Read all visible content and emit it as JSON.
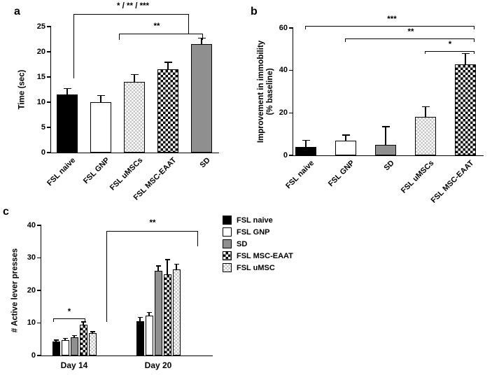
{
  "figure": {
    "background": "#ffffff",
    "colors": {
      "black_bar": "#000000",
      "white_bar": "#ffffff",
      "gray_bar": "#8f8f8f",
      "checker_dark": "#000000",
      "checker_light": "#c4c4c4"
    }
  },
  "panels": {
    "a": {
      "label": "a"
    },
    "b": {
      "label": "b"
    },
    "c": {
      "label": "c"
    }
  },
  "chart_data": [
    {
      "type": "bar",
      "panel": "a",
      "title": "",
      "ylabel": "Time (sec)",
      "ylim": [
        0,
        25
      ],
      "yticks": [
        0,
        5,
        10,
        15,
        20,
        25
      ],
      "categories": [
        "FSL naive",
        "FSL GNP",
        "FSL uMSCs",
        "FSL MSC-EAAT",
        "SD"
      ],
      "values": [
        11.5,
        10.0,
        14.0,
        16.5,
        21.5
      ],
      "errors": [
        1.2,
        1.3,
        1.5,
        1.4,
        1.2
      ],
      "styles": [
        "black",
        "white",
        "light-check",
        "check",
        "gray"
      ],
      "annotations": [
        "* / ** / ***",
        "**"
      ],
      "grid": false,
      "legend_position": "none"
    },
    {
      "type": "bar",
      "panel": "b",
      "title": "",
      "ylabel": "Improvement in immobility (% baseline)",
      "ylabel_lines": [
        "Improvement in immobility",
        "(% baseline)"
      ],
      "ylim": [
        0,
        60
      ],
      "yticks": [
        0,
        20,
        40,
        60
      ],
      "categories": [
        "FSL naive",
        "FSL GNP",
        "SD",
        "FSL uMSCs",
        "FSL MSC-EAAT"
      ],
      "values": [
        4,
        7,
        5,
        18,
        43
      ],
      "errors": [
        3,
        2.5,
        8.5,
        5,
        5
      ],
      "styles": [
        "black",
        "white",
        "gray",
        "light-check",
        "check"
      ],
      "annotations": [
        "***",
        "**",
        "*"
      ],
      "grid": false,
      "legend_position": "none"
    },
    {
      "type": "bar",
      "panel": "c",
      "title": "",
      "ylabel": "# Active lever presses",
      "ylim": [
        0,
        40
      ],
      "yticks": [
        0,
        10,
        20,
        30,
        40
      ],
      "groups": [
        "Day 14",
        "Day 20"
      ],
      "series": [
        {
          "name": "FSL naive",
          "style": "black",
          "values": [
            4.2,
            10.5
          ],
          "errors": [
            0.5,
            1.2
          ]
        },
        {
          "name": "FSL GNP",
          "style": "white",
          "values": [
            4.8,
            12.2
          ],
          "errors": [
            0.5,
            1.0
          ]
        },
        {
          "name": "SD",
          "style": "gray",
          "values": [
            5.5,
            26.0
          ],
          "errors": [
            0.6,
            1.5
          ]
        },
        {
          "name": "FSL MSC-EAAT",
          "style": "check",
          "values": [
            9.5,
            25.0
          ],
          "errors": [
            0.8,
            4.5
          ]
        },
        {
          "name": "FSL uMSC",
          "style": "light-check",
          "values": [
            6.8,
            26.5
          ],
          "errors": [
            0.5,
            1.5
          ]
        }
      ],
      "annotations": [
        "*",
        "**"
      ],
      "grid": false,
      "legend_position": "right"
    }
  ],
  "legend": {
    "items": [
      {
        "label": "FSL naive",
        "style": "black"
      },
      {
        "label": "FSL GNP",
        "style": "white"
      },
      {
        "label": "SD",
        "style": "gray"
      },
      {
        "label": "FSL MSC-EAAT",
        "style": "check"
      },
      {
        "label": "FSL uMSC",
        "style": "light-check"
      }
    ]
  }
}
